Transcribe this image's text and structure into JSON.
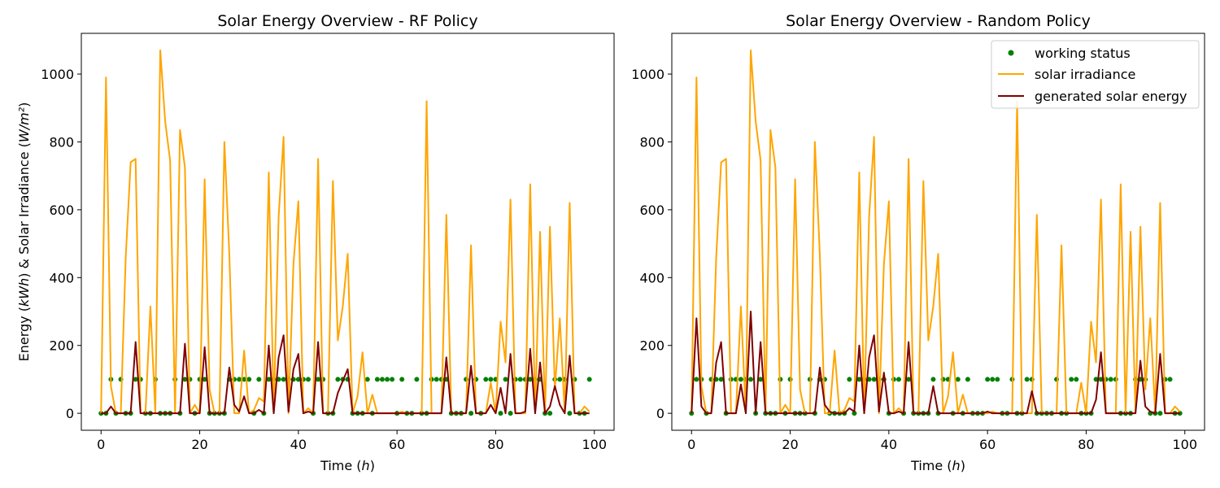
{
  "colors": {
    "status": "#008000",
    "irradiance": "#FFA500",
    "energy": "#800000"
  },
  "chart_data": [
    {
      "type": "line",
      "title": "Solar Energy Overview - RF Policy",
      "xlabel": "Time (h)",
      "ylabel": "Energy (kWh) & Solar Irradiance (W/m²)",
      "xlim": [
        -4,
        104
      ],
      "ylim": [
        -50,
        1120
      ],
      "xticks": [
        0,
        20,
        40,
        60,
        80,
        100
      ],
      "yticks": [
        0,
        200,
        400,
        600,
        800,
        1000
      ],
      "grid": false,
      "legend": null,
      "irradiance": [
        0,
        990,
        80,
        0,
        0,
        460,
        740,
        750,
        0,
        0,
        315,
        0,
        1070,
        860,
        745,
        0,
        835,
        725,
        0,
        25,
        0,
        690,
        70,
        0,
        0,
        800,
        470,
        0,
        0,
        185,
        0,
        10,
        45,
        35,
        710,
        0,
        580,
        815,
        0,
        440,
        625,
        0,
        15,
        0,
        750,
        0,
        0,
        685,
        215,
        315,
        470,
        0,
        50,
        180,
        0,
        55,
        0,
        0,
        0,
        0,
        0,
        5,
        0,
        0,
        0,
        0,
        920,
        0,
        0,
        0,
        585,
        0,
        0,
        0,
        0,
        495,
        0,
        0,
        0,
        90,
        0,
        270,
        150,
        630,
        0,
        0,
        0,
        675,
        0,
        535,
        0,
        550,
        70,
        280,
        0,
        620,
        0,
        0,
        20,
        5
      ],
      "energy": [
        0,
        0,
        20,
        0,
        0,
        0,
        0,
        210,
        0,
        0,
        0,
        0,
        0,
        0,
        0,
        0,
        0,
        205,
        0,
        0,
        0,
        195,
        0,
        0,
        0,
        0,
        135,
        25,
        5,
        50,
        0,
        0,
        10,
        0,
        200,
        0,
        165,
        230,
        5,
        130,
        175,
        0,
        5,
        0,
        210,
        0,
        0,
        0,
        60,
        95,
        130,
        0,
        0,
        0,
        0,
        0,
        0,
        0,
        0,
        0,
        0,
        0,
        0,
        0,
        0,
        0,
        0,
        0,
        0,
        0,
        165,
        0,
        0,
        0,
        0,
        140,
        0,
        0,
        0,
        25,
        0,
        75,
        0,
        175,
        0,
        0,
        5,
        190,
        0,
        150,
        0,
        20,
        80,
        25,
        0,
        170,
        0,
        0,
        0,
        0
      ],
      "status": [
        0,
        0,
        1,
        0,
        1,
        0,
        0,
        1,
        1,
        0,
        0,
        1,
        0,
        0,
        0,
        1,
        0,
        1,
        1,
        0,
        1,
        1,
        0,
        0,
        0,
        0,
        1,
        1,
        1,
        1,
        1,
        0,
        1,
        0,
        1,
        1,
        1,
        1,
        1,
        1,
        1,
        1,
        1,
        0,
        1,
        1,
        0,
        0,
        1,
        1,
        1,
        0,
        0,
        0,
        1,
        0,
        1,
        1,
        1,
        1,
        0,
        1,
        0,
        0,
        1,
        0,
        0,
        1,
        1,
        1,
        1,
        0,
        0,
        0,
        1,
        0,
        1,
        0,
        1,
        1,
        1,
        0,
        1,
        0,
        1,
        1,
        1,
        1,
        1,
        1,
        0,
        0,
        1,
        1,
        1,
        0,
        1,
        0,
        0,
        1
      ],
      "legend_labels": []
    },
    {
      "type": "line",
      "title": "Solar Energy Overview - Random Policy",
      "xlabel": "Time (h)",
      "ylabel": "",
      "xlim": [
        -4,
        104
      ],
      "ylim": [
        -50,
        1120
      ],
      "xticks": [
        0,
        20,
        40,
        60,
        80,
        100
      ],
      "yticks": [
        0,
        200,
        400,
        600,
        800,
        1000
      ],
      "grid": false,
      "legend": "upper right",
      "irradiance": [
        0,
        990,
        80,
        0,
        0,
        460,
        740,
        750,
        0,
        0,
        315,
        0,
        1070,
        860,
        745,
        0,
        835,
        725,
        0,
        25,
        0,
        690,
        70,
        0,
        0,
        800,
        470,
        0,
        0,
        185,
        0,
        10,
        45,
        35,
        710,
        0,
        580,
        815,
        0,
        440,
        625,
        0,
        15,
        0,
        750,
        0,
        0,
        685,
        215,
        315,
        470,
        0,
        50,
        180,
        0,
        55,
        0,
        0,
        0,
        0,
        0,
        5,
        0,
        0,
        0,
        0,
        920,
        0,
        0,
        0,
        585,
        0,
        0,
        0,
        0,
        495,
        0,
        0,
        0,
        90,
        0,
        270,
        150,
        630,
        0,
        0,
        0,
        675,
        0,
        535,
        0,
        550,
        70,
        280,
        0,
        620,
        0,
        0,
        20,
        5
      ],
      "energy": [
        0,
        280,
        20,
        0,
        0,
        150,
        210,
        0,
        0,
        0,
        85,
        0,
        300,
        0,
        210,
        0,
        0,
        0,
        0,
        0,
        0,
        0,
        0,
        0,
        0,
        0,
        135,
        25,
        5,
        0,
        0,
        0,
        15,
        5,
        200,
        0,
        165,
        230,
        5,
        120,
        0,
        0,
        5,
        0,
        210,
        0,
        0,
        0,
        0,
        80,
        0,
        0,
        0,
        0,
        0,
        0,
        0,
        0,
        0,
        0,
        5,
        0,
        0,
        0,
        0,
        0,
        0,
        0,
        0,
        65,
        0,
        0,
        0,
        0,
        0,
        0,
        0,
        0,
        0,
        0,
        0,
        0,
        40,
        180,
        0,
        0,
        0,
        0,
        0,
        0,
        0,
        155,
        20,
        5,
        0,
        175,
        0,
        0,
        0,
        0
      ],
      "status": [
        0,
        1,
        1,
        0,
        1,
        1,
        1,
        0,
        1,
        1,
        1,
        1,
        1,
        0,
        1,
        0,
        0,
        0,
        1,
        0,
        1,
        0,
        0,
        0,
        1,
        0,
        1,
        1,
        0,
        0,
        0,
        0,
        1,
        0,
        1,
        1,
        1,
        1,
        1,
        1,
        0,
        1,
        1,
        0,
        1,
        0,
        0,
        0,
        0,
        1,
        0,
        1,
        1,
        0,
        1,
        0,
        1,
        0,
        0,
        0,
        1,
        1,
        1,
        0,
        0,
        1,
        0,
        0,
        1,
        1,
        0,
        0,
        0,
        0,
        1,
        0,
        0,
        1,
        1,
        0,
        0,
        0,
        1,
        1,
        1,
        1,
        1,
        0,
        0,
        0,
        1,
        1,
        1,
        0,
        0,
        0,
        1,
        1,
        0,
        0
      ],
      "legend_labels": [
        "working status",
        "solar irradiance",
        "generated solar energy"
      ]
    }
  ]
}
